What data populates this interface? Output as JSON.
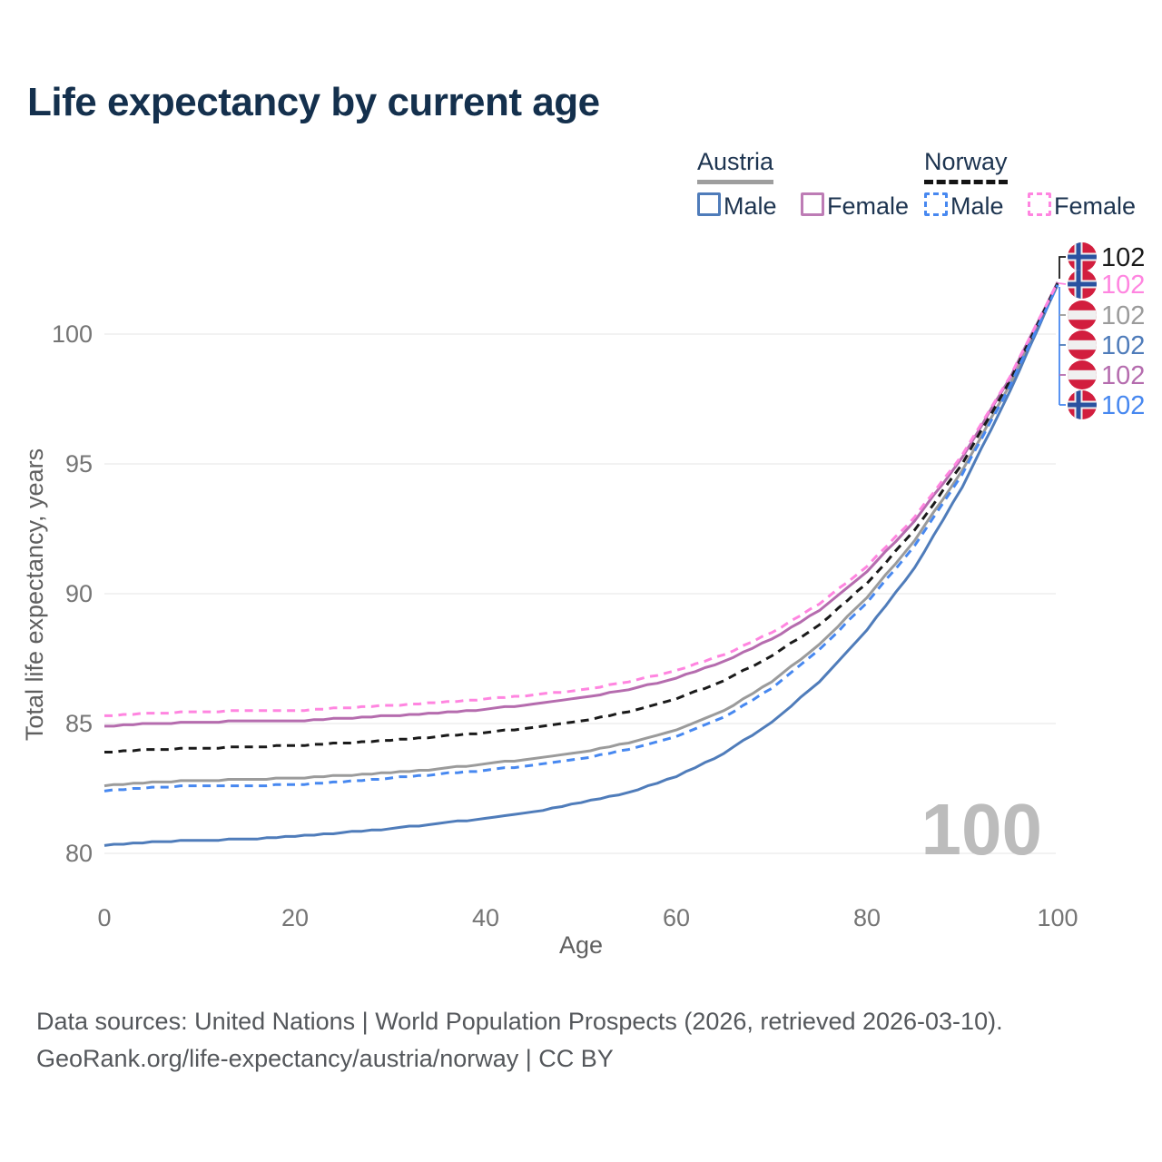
{
  "title": "Life expectancy by current age",
  "legend": {
    "austria": {
      "label": "Austria",
      "male": "Male",
      "female": "Female"
    },
    "norway": {
      "label": "Norway",
      "male": "Male",
      "female": "Female"
    }
  },
  "watermark": "100",
  "footer": {
    "line1": "Data sources: United Nations | World Population Prospects (2026, retrieved 2026-03-10).",
    "line2": "GeoRank.org/life-expectancy/austria/norway | CC BY"
  },
  "colors": {
    "title_text": "#14304d",
    "legend_text": "#1d3450",
    "gridline": "#e9e9e9",
    "tick_text": "#757575",
    "axis_title_text": "#5f5f5f",
    "watermark_text": "#bcbcbc",
    "footer_text": "#54575b",
    "austria_male": "#4f7cba",
    "austria_female": "#b56cae",
    "austria_total": "#9b9b9b",
    "norway_male": "#4788f0",
    "norway_female": "#ff85e0",
    "norway_total": "#1a1a1a",
    "flag_red": "#d21e3e",
    "flag_white": "#f0f0f0",
    "flag_blue": "#2a52a0"
  },
  "chart_data": {
    "type": "line",
    "title": "Life expectancy by current age",
    "xlabel": "Age",
    "ylabel": "Total life expectancy, years",
    "x_ticks": [
      0,
      20,
      40,
      60,
      80,
      100
    ],
    "y_ticks": [
      80,
      85,
      90,
      95,
      100
    ],
    "xlim": [
      0,
      100
    ],
    "ylim": [
      80,
      102.2
    ],
    "grid": "horizontal",
    "legend_position": "top-right",
    "x": [
      0,
      5,
      10,
      15,
      20,
      25,
      30,
      35,
      40,
      45,
      50,
      55,
      60,
      65,
      70,
      75,
      80,
      85,
      90,
      95,
      100
    ],
    "series": [
      {
        "name": "Austria",
        "country": "Austria",
        "sex": "total",
        "style": "solid",
        "color_key": "austria_total",
        "flag": "austria",
        "end_label": "102",
        "values": [
          82.6,
          82.75,
          82.8,
          82.85,
          82.9,
          83.0,
          83.1,
          83.25,
          83.45,
          83.65,
          83.9,
          84.25,
          84.75,
          85.5,
          86.6,
          88.05,
          89.85,
          92.05,
          94.75,
          98.05,
          101.9
        ]
      },
      {
        "name": "Austria Male",
        "country": "Austria",
        "sex": "male",
        "style": "solid",
        "color_key": "austria_male",
        "flag": "austria",
        "end_label": "102",
        "values": [
          80.3,
          80.45,
          80.5,
          80.55,
          80.65,
          80.8,
          80.95,
          81.15,
          81.35,
          81.6,
          81.95,
          82.35,
          82.95,
          83.85,
          85.05,
          86.6,
          88.6,
          91.0,
          94.1,
          97.8,
          101.9
        ]
      },
      {
        "name": "Austria Female",
        "country": "Austria",
        "sex": "female",
        "style": "solid",
        "color_key": "austria_female",
        "flag": "austria",
        "end_label": "102",
        "values": [
          84.9,
          85.0,
          85.05,
          85.1,
          85.1,
          85.2,
          85.3,
          85.4,
          85.55,
          85.75,
          86.0,
          86.3,
          86.75,
          87.4,
          88.25,
          89.35,
          90.85,
          92.8,
          95.25,
          98.3,
          102.0
        ]
      },
      {
        "name": "Norway",
        "country": "Norway",
        "sex": "total",
        "style": "dashed",
        "color_key": "norway_total",
        "flag": "norway",
        "end_label": "102",
        "values": [
          83.9,
          84.0,
          84.05,
          84.1,
          84.15,
          84.25,
          84.35,
          84.5,
          84.65,
          84.85,
          85.1,
          85.45,
          85.95,
          86.65,
          87.6,
          88.8,
          90.4,
          92.45,
          95.0,
          98.2,
          101.95
        ]
      },
      {
        "name": "Norway Male",
        "country": "Norway",
        "sex": "male",
        "style": "dashed",
        "color_key": "norway_male",
        "flag": "norway",
        "end_label": "102",
        "values": [
          82.4,
          82.55,
          82.6,
          82.6,
          82.65,
          82.75,
          82.9,
          83.05,
          83.2,
          83.4,
          83.65,
          84.0,
          84.5,
          85.25,
          86.35,
          87.85,
          89.65,
          91.85,
          94.6,
          98.0,
          101.9
        ]
      },
      {
        "name": "Norway Female",
        "country": "Norway",
        "sex": "female",
        "style": "dashed",
        "color_key": "norway_female",
        "flag": "norway",
        "end_label": "102",
        "values": [
          85.3,
          85.4,
          85.45,
          85.5,
          85.5,
          85.6,
          85.7,
          85.8,
          85.95,
          86.1,
          86.3,
          86.6,
          87.05,
          87.65,
          88.5,
          89.6,
          91.05,
          92.95,
          95.35,
          98.35,
          102.0
        ]
      }
    ],
    "end_labels": [
      {
        "value": "102",
        "flag": "norway",
        "color_key": "norway_total",
        "series": "Norway"
      },
      {
        "value": "102",
        "flag": "norway",
        "color_key": "norway_female",
        "series": "Norway Female"
      },
      {
        "value": "102",
        "flag": "austria",
        "color_key": "austria_total",
        "series": "Austria"
      },
      {
        "value": "102",
        "flag": "austria",
        "color_key": "austria_male",
        "series": "Austria Male"
      },
      {
        "value": "102",
        "flag": "austria",
        "color_key": "austria_female",
        "series": "Austria Female"
      },
      {
        "value": "102",
        "flag": "norway",
        "color_key": "norway_male",
        "series": "Norway Male"
      }
    ]
  }
}
